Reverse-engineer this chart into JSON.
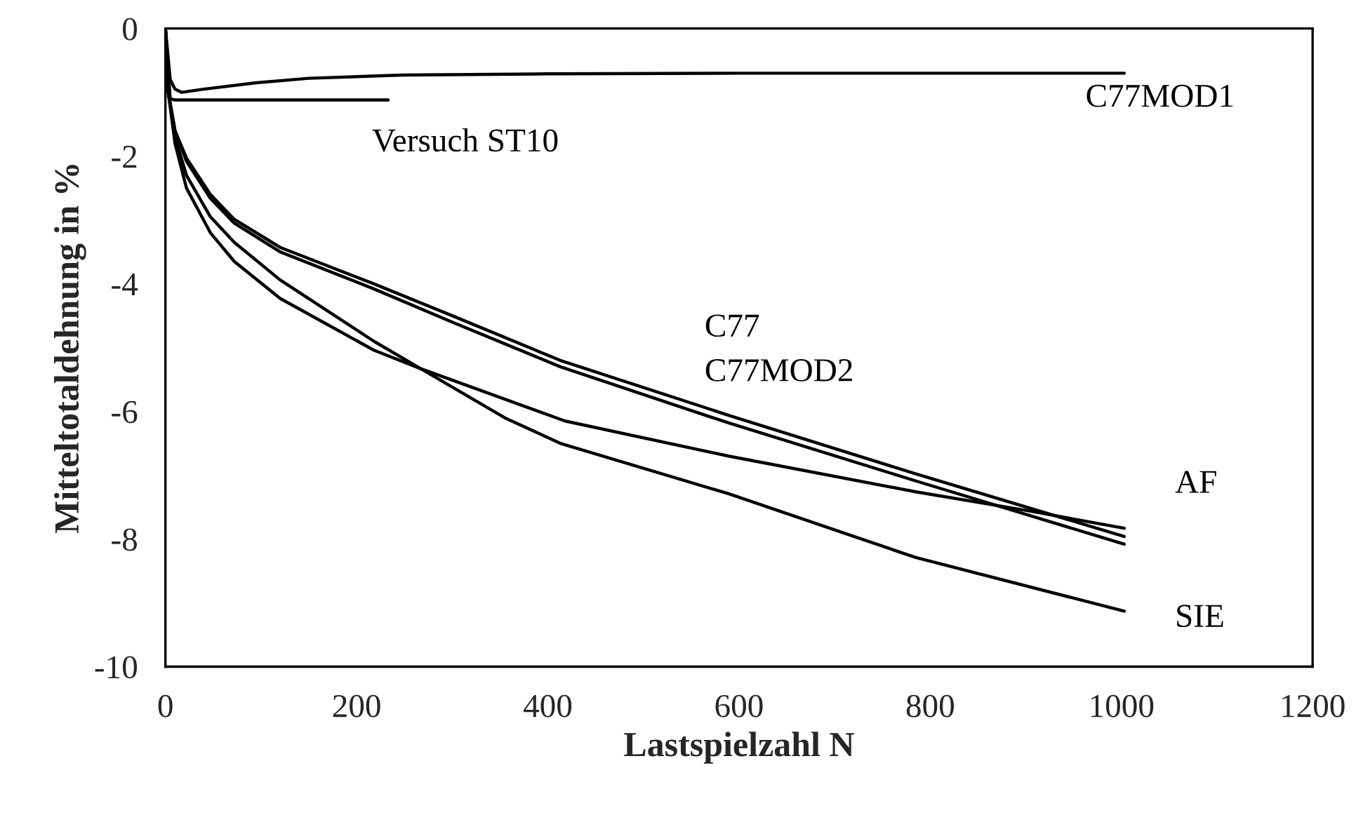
{
  "chart_data": {
    "type": "line",
    "xlabel": "Lastspielzahl N",
    "ylabel": "Mitteltotaldehnung in %",
    "xlim": [
      0,
      1200
    ],
    "xticks": [
      0,
      200,
      400,
      600,
      800,
      1000,
      1200
    ],
    "ylim": [
      -10,
      0
    ],
    "yticks": [
      -10,
      -8,
      -6,
      -4,
      -2,
      0
    ],
    "grid": false,
    "legend": false,
    "marker": "none",
    "line_style": "solid",
    "series": [
      {
        "name": "C77MOD1",
        "color": "#000000",
        "x": [
          0,
          5,
          10,
          17,
          40,
          95,
          150,
          248,
          400,
          600,
          800,
          1003
        ],
        "values": [
          0,
          -0.8,
          -0.95,
          -1.0,
          -0.95,
          -0.85,
          -0.78,
          -0.73,
          -0.71,
          -0.7,
          -0.7,
          -0.7
        ]
      },
      {
        "name": "Versuch ST10",
        "color": "#000000",
        "x": [
          0,
          5,
          10,
          50,
          100,
          233
        ],
        "values": [
          0,
          -1.1,
          -1.12,
          -1.12,
          -1.12,
          -1.12
        ]
      },
      {
        "name": "C77",
        "color": "#000000",
        "x": [
          0,
          3,
          10,
          22,
          47,
          72,
          120,
          218,
          300,
          413,
          589,
          785,
          1003
        ],
        "values": [
          0,
          -1.0,
          -1.6,
          -2.03,
          -2.6,
          -2.99,
          -3.43,
          -4.0,
          -4.5,
          -5.2,
          -6.06,
          -6.98,
          -7.96
        ]
      },
      {
        "name": "C77MOD2",
        "color": "#000000",
        "x": [
          0,
          3,
          10,
          22,
          47,
          72,
          120,
          218,
          300,
          413,
          589,
          785,
          1003
        ],
        "values": [
          0,
          -1.0,
          -1.6,
          -2.08,
          -2.66,
          -3.05,
          -3.5,
          -4.08,
          -4.6,
          -5.3,
          -6.18,
          -7.09,
          -8.08
        ]
      },
      {
        "name": "AF",
        "color": "#000000",
        "x": [
          0,
          3,
          10,
          22,
          47,
          72,
          120,
          218,
          267,
          418,
          589,
          785,
          900,
          1003
        ],
        "values": [
          0,
          -1.0,
          -1.8,
          -2.5,
          -3.2,
          -3.65,
          -4.23,
          -5.04,
          -5.33,
          -6.15,
          -6.7,
          -7.26,
          -7.55,
          -7.83
        ]
      },
      {
        "name": "SIE",
        "color": "#000000",
        "x": [
          0,
          3,
          10,
          22,
          47,
          72,
          120,
          218,
          267,
          355,
          413,
          589,
          785,
          1003
        ],
        "values": [
          0,
          -1.0,
          -1.7,
          -2.3,
          -2.95,
          -3.35,
          -3.94,
          -4.9,
          -5.33,
          -6.1,
          -6.5,
          -7.29,
          -8.29,
          -9.13
        ]
      }
    ]
  }
}
